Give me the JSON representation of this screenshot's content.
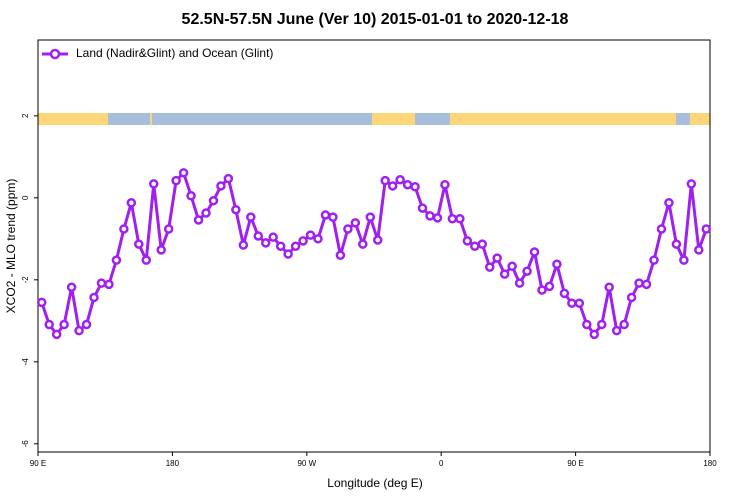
{
  "chart_data": {
    "type": "line",
    "title": "52.5N-57.5N June (Ver 10)   2015-01-01 to 2020-12-18",
    "x_label": "Longitude (deg E)",
    "y_label": "XCO2 - MLO trend (ppm)",
    "xlim": [
      90,
      540
    ],
    "ylim": [
      -6.2,
      3.85
    ],
    "xticks": [
      {
        "value": 90,
        "label": "90 E"
      },
      180,
      {
        "value": 270,
        "label": "90 W"
      },
      {
        "value": 360,
        "label": "0"
      },
      {
        "value": 450,
        "label": "90 E"
      },
      {
        "value": 540,
        "label": "180"
      }
    ],
    "yticks": [
      2,
      0,
      -2,
      -4,
      -6
    ],
    "legend": "top-left",
    "x": [
      92.5,
      97.5,
      102.5,
      107.5,
      112.5,
      117.5,
      122.5,
      127.5,
      132.5,
      137.5,
      142.5,
      147.5,
      152.5,
      157.5,
      162.5,
      167.5,
      172.5,
      177.5,
      182.5,
      187.5,
      192.5,
      197.5,
      202.5,
      207.5,
      212.5,
      217.5,
      222.5,
      227.5,
      232.5,
      237.5,
      242.5,
      247.5,
      252.5,
      257.5,
      262.5,
      267.5,
      272.5,
      277.5,
      282.5,
      287.5,
      292.5,
      297.5,
      302.5,
      307.5,
      312.5,
      317.5,
      322.5,
      327.5,
      332.5,
      337.5,
      342.5,
      347.5,
      352.5,
      357.5,
      362.5,
      367.5,
      372.5,
      377.5,
      382.5,
      387.5,
      392.5,
      397.5,
      402.5,
      407.5,
      412.5,
      417.5,
      422.5,
      427.5,
      432.5,
      437.5,
      442.5,
      447.5,
      452.5,
      457.5,
      462.5,
      467.5,
      472.5,
      477.5,
      482.5,
      487.5,
      492.5,
      497.5,
      502.5,
      507.5,
      512.5,
      517.5,
      522.5,
      527.5,
      532.5,
      537.5
    ],
    "series": [
      {
        "name": "Land (Nadir&Glint) and Ocean (Glint)",
        "color": "#a020f0",
        "values": [
          -2.55,
          -3.09,
          -3.33,
          -3.09,
          -2.18,
          -3.24,
          -3.09,
          -2.43,
          -2.08,
          -2.11,
          -1.52,
          -0.76,
          -0.12,
          -1.13,
          -1.52,
          0.34,
          -1.27,
          -0.76,
          0.42,
          0.61,
          0.05,
          -0.54,
          -0.37,
          -0.07,
          0.29,
          0.47,
          -0.29,
          -1.15,
          -0.47,
          -0.93,
          -1.1,
          -0.96,
          -1.18,
          -1.37,
          -1.18,
          -1.05,
          -0.91,
          -1.0,
          -0.42,
          -0.47,
          -1.4,
          -0.76,
          -0.61,
          -1.13,
          -0.47,
          -1.03,
          0.42,
          0.29,
          0.44,
          0.32,
          0.27,
          -0.25,
          -0.44,
          -0.49,
          0.32,
          -0.51,
          -0.51,
          -1.05,
          -1.18,
          -1.13,
          -1.69,
          -1.47,
          -1.86,
          -1.67,
          -2.08,
          -1.79,
          -1.32,
          -2.25,
          -2.16,
          -1.62,
          -2.33,
          -2.57,
          -2.57,
          -3.09,
          -3.33,
          -3.09,
          -2.18,
          -3.24,
          -3.09,
          -2.43,
          -2.08,
          -2.11,
          -1.52,
          -0.76,
          -0.12,
          -1.13,
          -1.52,
          0.34,
          -1.27,
          -0.76
        ]
      }
    ]
  }
}
